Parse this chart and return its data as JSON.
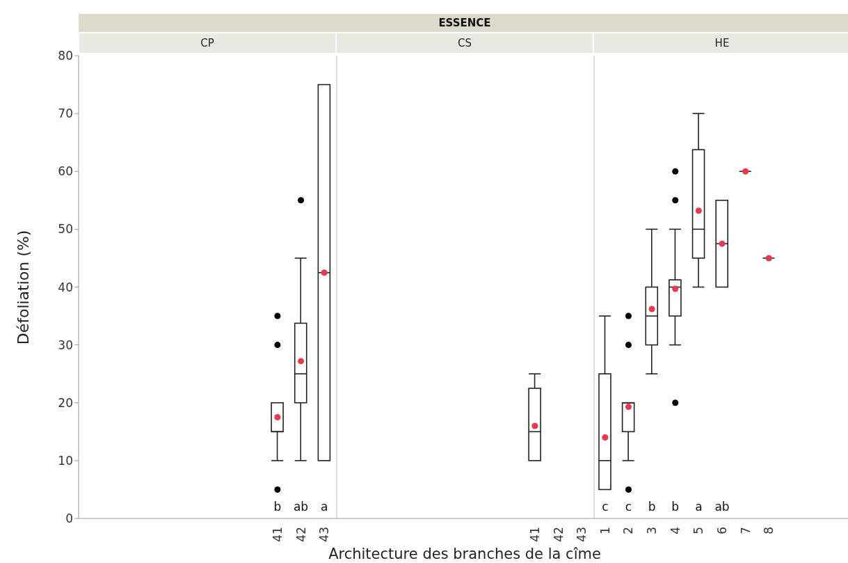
{
  "chart_data": [
    {
      "type": "box",
      "title": "CP",
      "ylabel": "Défoliation (%)",
      "ylim": [
        0,
        80
      ],
      "yticks": [
        0,
        10,
        20,
        30,
        40,
        50,
        60,
        70,
        80
      ],
      "categories": [
        null,
        null,
        null,
        null,
        null,
        null,
        null,
        null,
        "41",
        "42",
        "43"
      ],
      "boxes": [
        null,
        null,
        null,
        null,
        null,
        null,
        null,
        null,
        {
          "low": 10,
          "q1": 15,
          "median": 15,
          "q3": 20,
          "high": 20,
          "mean": 17.5,
          "outliers": [
            5,
            30,
            35
          ]
        },
        {
          "low": 10,
          "q1": 20,
          "median": 25,
          "q3": 33.75,
          "high": 45,
          "mean": 27.2,
          "outliers": [
            55
          ]
        },
        {
          "low": 10,
          "q1": 10,
          "median": 42.5,
          "q3": 75,
          "high": 75,
          "mean": 42.5
        }
      ],
      "annotations": [
        "b",
        "ab",
        "a"
      ]
    },
    {
      "type": "box",
      "title": "CS",
      "subtitle": "ESSENCE",
      "xlabel": "Architecture des branches de la cîme",
      "ylim": [
        0,
        80
      ],
      "yticks": [
        0,
        10,
        20,
        30,
        40,
        50,
        60,
        70,
        80
      ],
      "tick_labels": "x",
      "categories": [
        null,
        null,
        null,
        null,
        null,
        null,
        null,
        null,
        "41",
        "42",
        "43"
      ],
      "boxes": [
        null,
        null,
        null,
        null,
        null,
        null,
        null,
        null,
        {
          "low": 10,
          "q1": 10,
          "median": 15,
          "q3": 22.5,
          "high": 25,
          "mean": 16
        },
        null,
        null
      ]
    },
    {
      "type": "box",
      "title": "HE",
      "ylim": [
        0,
        80
      ],
      "yticks": [
        0,
        10,
        20,
        30,
        40,
        50,
        60,
        70,
        80
      ],
      "tick_labels": "x",
      "categories": [
        "1",
        "2",
        "3",
        "4",
        "5",
        "6",
        "7",
        "8",
        null,
        null,
        null
      ],
      "boxes": [
        {
          "low": 5,
          "q1": 5,
          "median": 10,
          "q3": 25,
          "high": 35,
          "mean": 14
        },
        {
          "low": 10,
          "q1": 15,
          "median": 20,
          "q3": 20,
          "high": 20,
          "mean": 19.3,
          "outliers": [
            5,
            30,
            35
          ]
        },
        {
          "low": 25,
          "q1": 30,
          "median": 35,
          "q3": 40,
          "high": 50,
          "mean": 36.2
        },
        {
          "low": 30,
          "q1": 35,
          "median": 40,
          "q3": 41.25,
          "high": 50,
          "mean": 39.7,
          "outliers": [
            20,
            55,
            60
          ]
        },
        {
          "low": 40,
          "q1": 45,
          "median": 50,
          "q3": 63.75,
          "high": 70,
          "mean": 53.2
        },
        {
          "low": 40,
          "q1": 40,
          "median": 47.5,
          "q3": 55,
          "high": 55,
          "mean": 47.5
        },
        {
          "low": 60,
          "q1": 60,
          "median": 60,
          "q3": 60,
          "high": 60,
          "mean": 60
        },
        {
          "low": 45,
          "q1": 45,
          "median": 45,
          "q3": 45,
          "high": 45,
          "mean": 45
        },
        null,
        null,
        null
      ],
      "annotations": [
        "c",
        "c",
        "b",
        "b",
        "a",
        "ab"
      ]
    }
  ]
}
